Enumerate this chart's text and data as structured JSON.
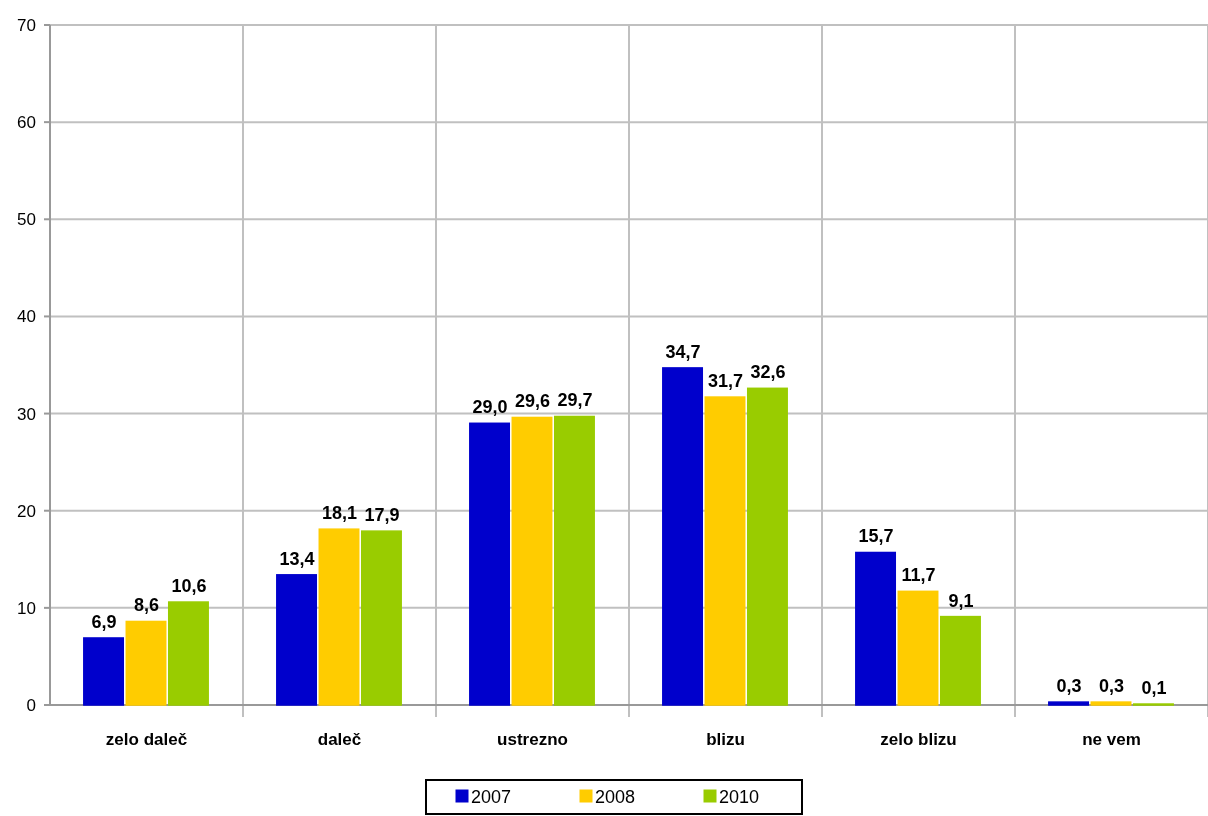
{
  "chart_data": {
    "type": "bar",
    "categories": [
      "zelo daleč",
      "daleč",
      "ustrezno",
      "blizu",
      "zelo blizu",
      "ne vem"
    ],
    "series": [
      {
        "name": "2007",
        "color": "#0000cc",
        "values": [
          6.9,
          13.4,
          29.0,
          34.7,
          15.7,
          0.3
        ],
        "value_labels": [
          "6,9",
          "13,4",
          "29,0",
          "34,7",
          "15,7",
          "0,3"
        ]
      },
      {
        "name": "2008",
        "color": "#ffcc00",
        "values": [
          8.6,
          18.1,
          29.6,
          31.7,
          11.7,
          0.3
        ],
        "value_labels": [
          "8,6",
          "18,1",
          "29,6",
          "31,7",
          "11,7",
          "0,3"
        ]
      },
      {
        "name": "2010",
        "color": "#99cc00",
        "values": [
          10.6,
          17.9,
          29.7,
          32.6,
          9.1,
          0.1
        ],
        "value_labels": [
          "10,6",
          "17,9",
          "29,7",
          "32,6",
          "9,1",
          "0,1"
        ]
      }
    ],
    "ylim": [
      0,
      70
    ],
    "yticks": [
      0,
      10,
      20,
      30,
      40,
      50,
      60,
      70
    ],
    "grid": true,
    "legend": "bottom"
  }
}
